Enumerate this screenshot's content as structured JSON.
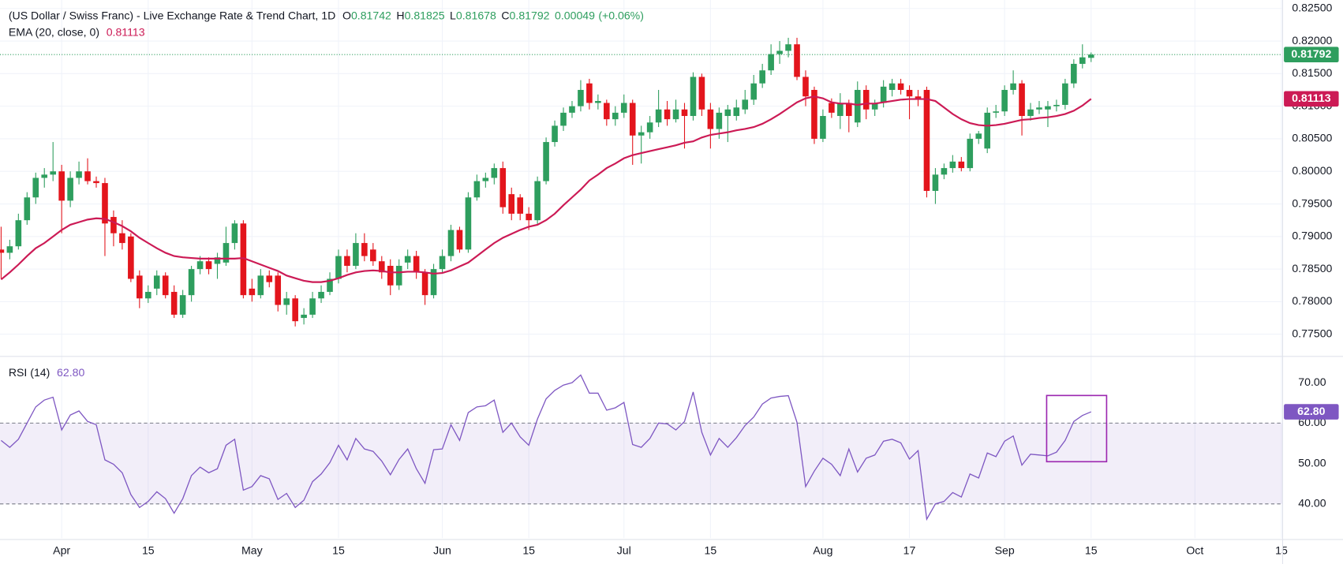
{
  "chart_data": {
    "type": "candlestick",
    "title": "(US Dollar / Swiss Franc) - Live Exchange Rate & Trend Chart, 1D",
    "ohlc_labels": [
      "O",
      "H",
      "L",
      "C"
    ],
    "change": "0.00049",
    "change_pct": "(+0.06%)",
    "up_color": "#2e9e5e",
    "down_color": "#e3151c",
    "categories": [
      null,
      null,
      null,
      null,
      null,
      null,
      null,
      "Apr",
      null,
      null,
      null,
      null,
      null,
      null,
      null,
      null,
      null,
      "15",
      null,
      null,
      null,
      null,
      null,
      null,
      null,
      null,
      null,
      null,
      null,
      "May",
      null,
      null,
      null,
      null,
      null,
      null,
      null,
      null,
      null,
      "15",
      null,
      null,
      null,
      null,
      null,
      null,
      null,
      null,
      null,
      null,
      null,
      "Jun",
      null,
      null,
      null,
      null,
      null,
      null,
      null,
      null,
      null,
      "15",
      null,
      null,
      null,
      null,
      null,
      null,
      null,
      null,
      null,
      null,
      "Jul",
      null,
      null,
      null,
      null,
      null,
      null,
      null,
      null,
      null,
      "15",
      null,
      null,
      null,
      null,
      null,
      null,
      null,
      null,
      null,
      null,
      null,
      null,
      "Aug",
      null,
      null,
      null,
      null,
      null,
      null,
      null,
      null,
      null,
      "17",
      null,
      null,
      null,
      null,
      null,
      null,
      null,
      null,
      null,
      null,
      "Sep",
      null,
      null,
      null,
      null,
      null,
      null,
      null,
      null,
      null,
      "15",
      null,
      null,
      null,
      null,
      null,
      null,
      null,
      null,
      null,
      null,
      null,
      "Oct",
      null,
      null,
      null,
      null,
      null,
      null,
      null,
      null,
      null,
      "15"
    ],
    "open": [
      0.788,
      0.7875,
      0.7885,
      0.7925,
      0.796,
      0.799,
      0.7995,
      0.8,
      0.7955,
      0.799,
      0.8,
      0.7985,
      0.7982,
      0.793,
      0.7905,
      0.79,
      0.784,
      0.7805,
      0.782,
      0.784,
      0.7815,
      0.778,
      0.781,
      0.785,
      0.7862,
      0.7858,
      0.786,
      0.789,
      0.792,
      0.782,
      0.781,
      0.784,
      0.784,
      0.7795,
      0.7805,
      0.7775,
      0.778,
      0.7805,
      0.7815,
      0.7835,
      0.787,
      0.7855,
      0.789,
      0.788,
      0.7862,
      0.7855,
      0.7825,
      0.786,
      0.787,
      0.7845,
      0.781,
      0.785,
      0.787,
      0.791,
      0.788,
      0.796,
      0.7985,
      0.799,
      0.8005,
      0.7965,
      0.796,
      0.7935,
      0.7925,
      0.7985,
      0.8045,
      0.807,
      0.809,
      0.81,
      0.8135,
      0.8105,
      0.8105,
      0.808,
      0.809,
      0.8105,
      0.8055,
      0.806,
      0.8075,
      0.8095,
      0.808,
      0.8095,
      0.8085,
      0.8145,
      0.8095,
      0.8065,
      0.8085,
      0.8085,
      0.8095,
      0.811,
      0.8135,
      0.8155,
      0.818,
      0.8185,
      0.8195,
      0.8145,
      0.8125,
      0.805,
      0.8105,
      0.8085,
      0.8105,
      0.8075,
      0.8125,
      0.8095,
      0.8105,
      0.8125,
      0.8135,
      0.8125,
      0.8115,
      0.8125,
      0.797,
      0.7995,
      0.8005,
      0.8015,
      0.8005,
      0.805,
      0.8035,
      0.809,
      0.8092,
      0.8125,
      0.8135,
      0.8085,
      0.8095,
      0.8095,
      0.81,
      0.8102,
      0.8135,
      0.8165,
      0.81742,
      null,
      null,
      null,
      null,
      null,
      null,
      null,
      null,
      null,
      null,
      null,
      null,
      null,
      null,
      null,
      null,
      null,
      null,
      null,
      null,
      null,
      null
    ],
    "high": [
      0.7915,
      0.7895,
      0.7935,
      0.7968,
      0.7998,
      0.8005,
      0.8045,
      0.801,
      0.8,
      0.8015,
      0.802,
      0.7992,
      0.799,
      0.794,
      0.7925,
      0.7905,
      0.7848,
      0.7825,
      0.7848,
      0.7845,
      0.7825,
      0.7818,
      0.7855,
      0.787,
      0.7868,
      0.7875,
      0.7915,
      0.7925,
      0.7925,
      0.7835,
      0.785,
      0.7848,
      0.7845,
      0.7815,
      0.781,
      0.779,
      0.7815,
      0.7825,
      0.7845,
      0.788,
      0.788,
      0.7905,
      0.7905,
      0.789,
      0.787,
      0.7865,
      0.7865,
      0.788,
      0.7878,
      0.785,
      0.7858,
      0.788,
      0.7918,
      0.7915,
      0.7968,
      0.7995,
      0.7998,
      0.8012,
      0.8015,
      0.7975,
      0.7965,
      0.7945,
      0.7992,
      0.8052,
      0.8078,
      0.8098,
      0.8108,
      0.814,
      0.8142,
      0.8118,
      0.811,
      0.81,
      0.8118,
      0.811,
      0.807,
      0.8085,
      0.8125,
      0.8108,
      0.811,
      0.8105,
      0.8152,
      0.815,
      0.8105,
      0.8098,
      0.8102,
      0.811,
      0.8125,
      0.8148,
      0.8165,
      0.8195,
      0.82,
      0.8205,
      0.8205,
      0.8155,
      0.813,
      0.8095,
      0.8112,
      0.812,
      0.811,
      0.8138,
      0.8132,
      0.811,
      0.814,
      0.8142,
      0.8142,
      0.8132,
      0.8125,
      0.813,
      0.8005,
      0.8012,
      0.8025,
      0.8022,
      0.8058,
      0.8062,
      0.8098,
      0.8102,
      0.8132,
      0.8155,
      0.814,
      0.8105,
      0.8108,
      0.8108,
      0.811,
      0.8142,
      0.8172,
      0.8195,
      0.81825,
      null,
      null,
      null,
      null,
      null,
      null,
      null,
      null,
      null,
      null,
      null,
      null,
      null,
      null,
      null,
      null,
      null,
      null,
      null,
      null,
      null,
      null
    ],
    "low": [
      0.7835,
      0.7865,
      0.788,
      0.7918,
      0.795,
      0.7975,
      0.7985,
      0.7905,
      0.7945,
      0.798,
      0.798,
      0.7975,
      0.787,
      0.7885,
      0.788,
      0.783,
      0.779,
      0.7798,
      0.781,
      0.7805,
      0.7775,
      0.7775,
      0.78,
      0.7842,
      0.7842,
      0.7835,
      0.7855,
      0.788,
      0.7805,
      0.78,
      0.7805,
      0.7822,
      0.7785,
      0.778,
      0.7762,
      0.7765,
      0.7775,
      0.7798,
      0.781,
      0.7828,
      0.7845,
      0.785,
      0.7862,
      0.7855,
      0.7835,
      0.781,
      0.7818,
      0.785,
      0.7835,
      0.7795,
      0.7805,
      0.7845,
      0.7862,
      0.7875,
      0.7875,
      0.7955,
      0.7975,
      0.798,
      0.7935,
      0.7925,
      0.7925,
      0.791,
      0.7918,
      0.798,
      0.8038,
      0.8062,
      0.8082,
      0.8092,
      0.8095,
      0.8095,
      0.807,
      0.807,
      0.8082,
      0.801,
      0.8012,
      0.805,
      0.8068,
      0.807,
      0.8075,
      0.8035,
      0.8078,
      0.8085,
      0.8035,
      0.805,
      0.8045,
      0.8078,
      0.8088,
      0.8102,
      0.8128,
      0.8148,
      0.8165,
      0.8175,
      0.814,
      0.81,
      0.8042,
      0.8045,
      0.8082,
      0.8065,
      0.806,
      0.8068,
      0.808,
      0.8085,
      0.8098,
      0.8115,
      0.8118,
      0.808,
      0.81,
      0.796,
      0.795,
      0.7988,
      0.7998,
      0.8,
      0.8,
      0.8042,
      0.8028,
      0.8082,
      0.8085,
      0.8118,
      0.8055,
      0.8078,
      0.8088,
      0.8068,
      0.8092,
      0.8095,
      0.8128,
      0.8158,
      0.81678,
      null,
      null,
      null,
      null,
      null,
      null,
      null,
      null,
      null,
      null,
      null,
      null,
      null,
      null,
      null,
      null,
      null,
      null,
      null,
      null,
      null,
      null
    ],
    "close": [
      0.7875,
      0.7885,
      0.7925,
      0.796,
      0.799,
      0.7995,
      0.8,
      0.7955,
      0.799,
      0.8,
      0.7985,
      0.7982,
      0.792,
      0.7905,
      0.789,
      0.7835,
      0.7805,
      0.7815,
      0.784,
      0.781,
      0.778,
      0.781,
      0.785,
      0.7862,
      0.785,
      0.7868,
      0.789,
      0.792,
      0.781,
      0.781,
      0.784,
      0.783,
      0.7795,
      0.7805,
      0.777,
      0.778,
      0.7805,
      0.7815,
      0.7835,
      0.787,
      0.7855,
      0.789,
      0.787,
      0.7862,
      0.7845,
      0.7825,
      0.7855,
      0.787,
      0.7845,
      0.781,
      0.785,
      0.787,
      0.791,
      0.788,
      0.796,
      0.7985,
      0.799,
      0.8005,
      0.7945,
      0.7935,
      0.7935,
      0.7925,
      0.7985,
      0.8045,
      0.807,
      0.809,
      0.81,
      0.8125,
      0.8105,
      0.8108,
      0.808,
      0.809,
      0.8105,
      0.8055,
      0.806,
      0.8075,
      0.8095,
      0.808,
      0.8095,
      0.8085,
      0.8145,
      0.8095,
      0.8065,
      0.809,
      0.8095,
      0.8098,
      0.811,
      0.8135,
      0.8155,
      0.818,
      0.8185,
      0.8195,
      0.8145,
      0.8115,
      0.805,
      0.8085,
      0.809,
      0.8105,
      0.8085,
      0.8125,
      0.8095,
      0.8105,
      0.813,
      0.8135,
      0.8125,
      0.8115,
      0.811,
      0.797,
      0.7995,
      0.8005,
      0.8015,
      0.8005,
      0.805,
      0.8058,
      0.809,
      0.8092,
      0.8125,
      0.8135,
      0.8085,
      0.8095,
      0.8098,
      0.81,
      0.8102,
      0.8135,
      0.8165,
      0.8175,
      0.81792,
      null,
      null,
      null,
      null,
      null,
      null,
      null,
      null,
      null,
      null,
      null,
      null,
      null,
      null,
      null,
      null,
      null,
      null,
      null,
      null,
      null,
      null
    ],
    "ylim": [
      0.7718,
      0.8263
    ],
    "yticks": [
      {
        "value": 0.775,
        "label": "0.77500"
      },
      {
        "value": 0.78,
        "label": "0.78000"
      },
      {
        "value": 0.785,
        "label": "0.78500"
      },
      {
        "value": 0.79,
        "label": "0.79000"
      },
      {
        "value": 0.795,
        "label": "0.79500"
      },
      {
        "value": 0.8,
        "label": "0.80000"
      },
      {
        "value": 0.805,
        "label": "0.80500"
      },
      {
        "value": 0.81,
        "label": "0.81000"
      },
      {
        "value": 0.815,
        "label": "0.81500"
      },
      {
        "value": 0.82,
        "label": "0.82000"
      },
      {
        "value": 0.825,
        "label": "0.82500"
      }
    ],
    "grid": true,
    "overlays": [
      {
        "name": "EMA (20, close, 0)",
        "color": "#cc1a55",
        "values": [
          0.7834,
          0.7845,
          0.7857,
          0.787,
          0.7882,
          0.789,
          0.79,
          0.791,
          0.7918,
          0.7922,
          0.7926,
          0.7928,
          0.7927,
          0.7922,
          0.7916,
          0.7908,
          0.7898,
          0.789,
          0.7882,
          0.7875,
          0.787,
          0.7868,
          0.7867,
          0.7866,
          0.7866,
          0.7866,
          0.7866,
          0.7866,
          0.7867,
          0.7862,
          0.7857,
          0.7852,
          0.7847,
          0.784,
          0.7836,
          0.7832,
          0.783,
          0.783,
          0.7832,
          0.7836,
          0.7841,
          0.7845,
          0.7847,
          0.7848,
          0.7847,
          0.7845,
          0.7845,
          0.7846,
          0.7846,
          0.7845,
          0.7843,
          0.7844,
          0.7848,
          0.7854,
          0.786,
          0.787,
          0.788,
          0.789,
          0.7898,
          0.7904,
          0.791,
          0.7915,
          0.7918,
          0.7925,
          0.7935,
          0.7948,
          0.796,
          0.7972,
          0.7986,
          0.7995,
          0.8005,
          0.8012,
          0.802,
          0.8025,
          0.8028,
          0.8031,
          0.8034,
          0.8037,
          0.804,
          0.8044,
          0.8046,
          0.8052,
          0.8056,
          0.8058,
          0.806,
          0.8063,
          0.8065,
          0.8068,
          0.8073,
          0.808,
          0.8088,
          0.8097,
          0.8106,
          0.8112,
          0.8115,
          0.8112,
          0.8106,
          0.8104,
          0.8104,
          0.8102,
          0.8104,
          0.8104,
          0.8106,
          0.8108,
          0.811,
          0.8111,
          0.8111,
          0.8111,
          0.8108,
          0.8098,
          0.8088,
          0.808,
          0.8074,
          0.8071,
          0.807,
          0.8071,
          0.8073,
          0.8076,
          0.8079,
          0.808,
          0.8082,
          0.8083,
          0.8085,
          0.8088,
          0.8093,
          0.8101,
          0.81113,
          null,
          null,
          null,
          null,
          null,
          null,
          null,
          null,
          null,
          null,
          null,
          null,
          null,
          null,
          null,
          null,
          null,
          null,
          null,
          null,
          null,
          null
        ]
      }
    ],
    "rsi": {
      "name": "RSI (14)",
      "color": "#7e57c2",
      "last_label": "62.80",
      "ylim": [
        31.5,
        76.2
      ],
      "yticks": [
        {
          "value": 40,
          "label": "40.00"
        },
        {
          "value": 50,
          "label": "50.00"
        },
        {
          "value": 60,
          "label": "60.00"
        },
        {
          "value": 70,
          "label": "70.00"
        }
      ],
      "bands": [
        40,
        60
      ],
      "values": [
        55.7,
        54.0,
        56.0,
        60.0,
        64.0,
        65.7,
        66.4,
        58.3,
        62.0,
        63.0,
        60.4,
        59.6,
        50.9,
        49.8,
        47.7,
        42.3,
        39.1,
        40.6,
        43.0,
        41.3,
        37.7,
        41.3,
        47.0,
        49.1,
        47.7,
        48.7,
        54.5,
        56.0,
        43.4,
        44.3,
        47.0,
        46.2,
        41.1,
        42.6,
        39.1,
        40.9,
        45.5,
        47.4,
        50.2,
        54.5,
        50.9,
        56.2,
        53.6,
        53.0,
        50.6,
        47.2,
        51.0,
        53.6,
        48.7,
        45.1,
        53.4,
        53.6,
        59.6,
        55.7,
        62.6,
        64.0,
        64.3,
        65.7,
        57.7,
        60.0,
        56.6,
        54.5,
        61.0,
        66.0,
        68.1,
        69.4,
        70.0,
        71.9,
        67.4,
        67.4,
        63.2,
        63.8,
        65.1,
        54.7,
        54.0,
        56.2,
        60.0,
        59.8,
        58.3,
        60.4,
        67.7,
        57.7,
        52.1,
        56.2,
        54.0,
        56.4,
        59.4,
        61.5,
        64.7,
        66.2,
        66.6,
        66.8,
        60.2,
        44.3,
        48.1,
        51.3,
        49.8,
        47.0,
        53.6,
        47.9,
        51.3,
        52.1,
        55.5,
        56.0,
        55.1,
        51.1,
        53.2,
        36.2,
        40.0,
        40.6,
        42.8,
        41.7,
        47.4,
        46.4,
        52.6,
        51.7,
        55.5,
        56.8,
        49.6,
        52.3,
        52.1,
        51.9,
        52.8,
        55.7,
        60.4,
        61.9,
        62.8,
        null,
        null,
        null,
        null,
        null,
        null,
        null,
        null,
        null,
        null,
        null,
        null,
        null,
        null,
        null,
        null,
        null,
        null,
        null,
        null,
        null,
        null
      ]
    }
  }
}
